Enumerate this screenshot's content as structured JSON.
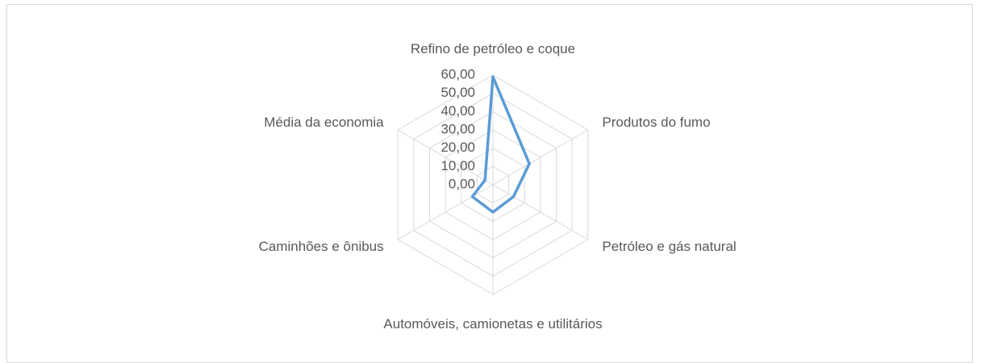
{
  "chart_data": {
    "type": "radar",
    "categories": [
      "Refino de petróleo e coque",
      "Produtos do fumo",
      "Petróleo e gás natural",
      "Automóveis, camionetas e utilitários",
      "Caminhões e ônibus",
      "Média da economia"
    ],
    "series": [
      {
        "color": "#5b9bd5",
        "values": [
          59,
          23,
          13,
          15,
          13,
          5
        ]
      }
    ],
    "ylim": [
      0,
      60
    ],
    "yticks": [
      {
        "value": 0,
        "label": "0,00"
      },
      {
        "value": 10,
        "label": "10,00"
      },
      {
        "value": 20,
        "label": "20,00"
      },
      {
        "value": 30,
        "label": "30,00"
      },
      {
        "value": 40,
        "label": "40,00"
      },
      {
        "value": 50,
        "label": "50,00"
      },
      {
        "value": 60,
        "label": "60,00"
      }
    ],
    "grid": true
  }
}
